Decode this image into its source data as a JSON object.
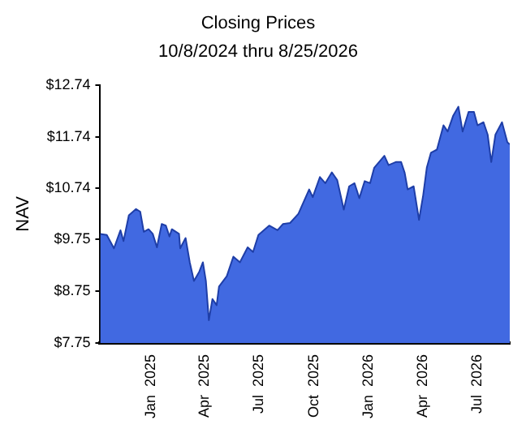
{
  "chart_data": {
    "type": "area",
    "title": "Closing Prices",
    "subtitle": "10/8/2024 thru 8/25/2026",
    "ylabel": "NAV",
    "x": [
      "2024-10-08",
      "2024-10-19",
      "2024-10-31",
      "2024-11-11",
      "2024-11-16",
      "2024-11-25",
      "2024-12-07",
      "2024-12-14",
      "2024-12-20",
      "2024-12-28",
      "2025-01-04",
      "2025-01-11",
      "2025-01-19",
      "2025-01-26",
      "2025-02-01",
      "2025-02-05",
      "2025-02-17",
      "2025-02-19",
      "2025-02-28",
      "2025-03-07",
      "2025-03-14",
      "2025-03-23",
      "2025-03-29",
      "2025-04-03",
      "2025-04-08",
      "2025-04-14",
      "2025-04-21",
      "2025-04-25",
      "2025-05-08",
      "2025-05-19",
      "2025-05-30",
      "2025-06-12",
      "2025-06-21",
      "2025-06-30",
      "2025-07-18",
      "2025-08-01",
      "2025-08-10",
      "2025-08-22",
      "2025-09-05",
      "2025-09-23",
      "2025-09-29",
      "2025-10-11",
      "2025-10-20",
      "2025-10-31",
      "2025-11-09",
      "2025-11-20",
      "2025-11-29",
      "2025-12-08",
      "2025-12-16",
      "2025-12-25",
      "2026-01-03",
      "2026-01-10",
      "2026-01-27",
      "2026-02-03",
      "2026-02-15",
      "2026-02-24",
      "2026-03-02",
      "2026-03-07",
      "2026-03-17",
      "2026-03-26",
      "2026-04-02",
      "2026-04-08",
      "2026-04-15",
      "2026-04-25",
      "2026-05-06",
      "2026-05-13",
      "2026-05-22",
      "2026-05-31",
      "2026-06-07",
      "2026-06-17",
      "2026-06-26",
      "2026-07-02",
      "2026-07-12",
      "2026-07-19",
      "2026-07-25",
      "2026-08-01",
      "2026-08-12",
      "2026-08-21",
      "2026-08-25"
    ],
    "series": [
      {
        "color": "#4169e1",
        "values": [
          9.86,
          9.84,
          9.58,
          9.93,
          9.72,
          10.22,
          10.34,
          10.29,
          9.9,
          9.95,
          9.86,
          9.6,
          10.05,
          10.02,
          9.81,
          9.95,
          9.86,
          9.58,
          9.78,
          9.31,
          8.95,
          9.13,
          9.31,
          8.95,
          8.19,
          8.6,
          8.48,
          8.84,
          9.04,
          9.42,
          9.31,
          9.6,
          9.51,
          9.84,
          10.02,
          9.93,
          10.05,
          10.07,
          10.25,
          10.72,
          10.57,
          10.96,
          10.84,
          11.05,
          10.9,
          10.33,
          10.78,
          10.84,
          10.55,
          10.88,
          10.84,
          11.14,
          11.37,
          11.19,
          11.25,
          11.25,
          11.04,
          10.72,
          10.78,
          10.13,
          10.61,
          11.14,
          11.43,
          11.49,
          11.96,
          11.84,
          12.14,
          12.32,
          11.84,
          12.22,
          12.22,
          11.96,
          12.02,
          11.78,
          11.25,
          11.78,
          12.02,
          11.63,
          11.59
        ]
      }
    ],
    "xlim": [
      "2024-10-08",
      "2026-08-25"
    ],
    "xticks": [
      {
        "value": "2025-01-01",
        "label": "Jan  2025"
      },
      {
        "value": "2025-04-01",
        "label": "Apr  2025"
      },
      {
        "value": "2025-07-01",
        "label": "Jul  2025"
      },
      {
        "value": "2025-10-01",
        "label": "Oct  2025"
      },
      {
        "value": "2026-01-01",
        "label": "Jan  2026"
      },
      {
        "value": "2026-04-01",
        "label": "Apr  2026"
      },
      {
        "value": "2026-07-01",
        "label": "Jul  2026"
      }
    ],
    "ylim": [
      7.75,
      12.74
    ],
    "yticks": [
      {
        "value": 7.75,
        "label": "$7.75"
      },
      {
        "value": 8.75,
        "label": "$8.75"
      },
      {
        "value": 9.75,
        "label": "$9.75"
      },
      {
        "value": 10.74,
        "label": "$10.74"
      },
      {
        "value": 11.74,
        "label": "$11.74"
      },
      {
        "value": 12.74,
        "label": "$12.74"
      }
    ],
    "grid": false,
    "legend": false
  }
}
